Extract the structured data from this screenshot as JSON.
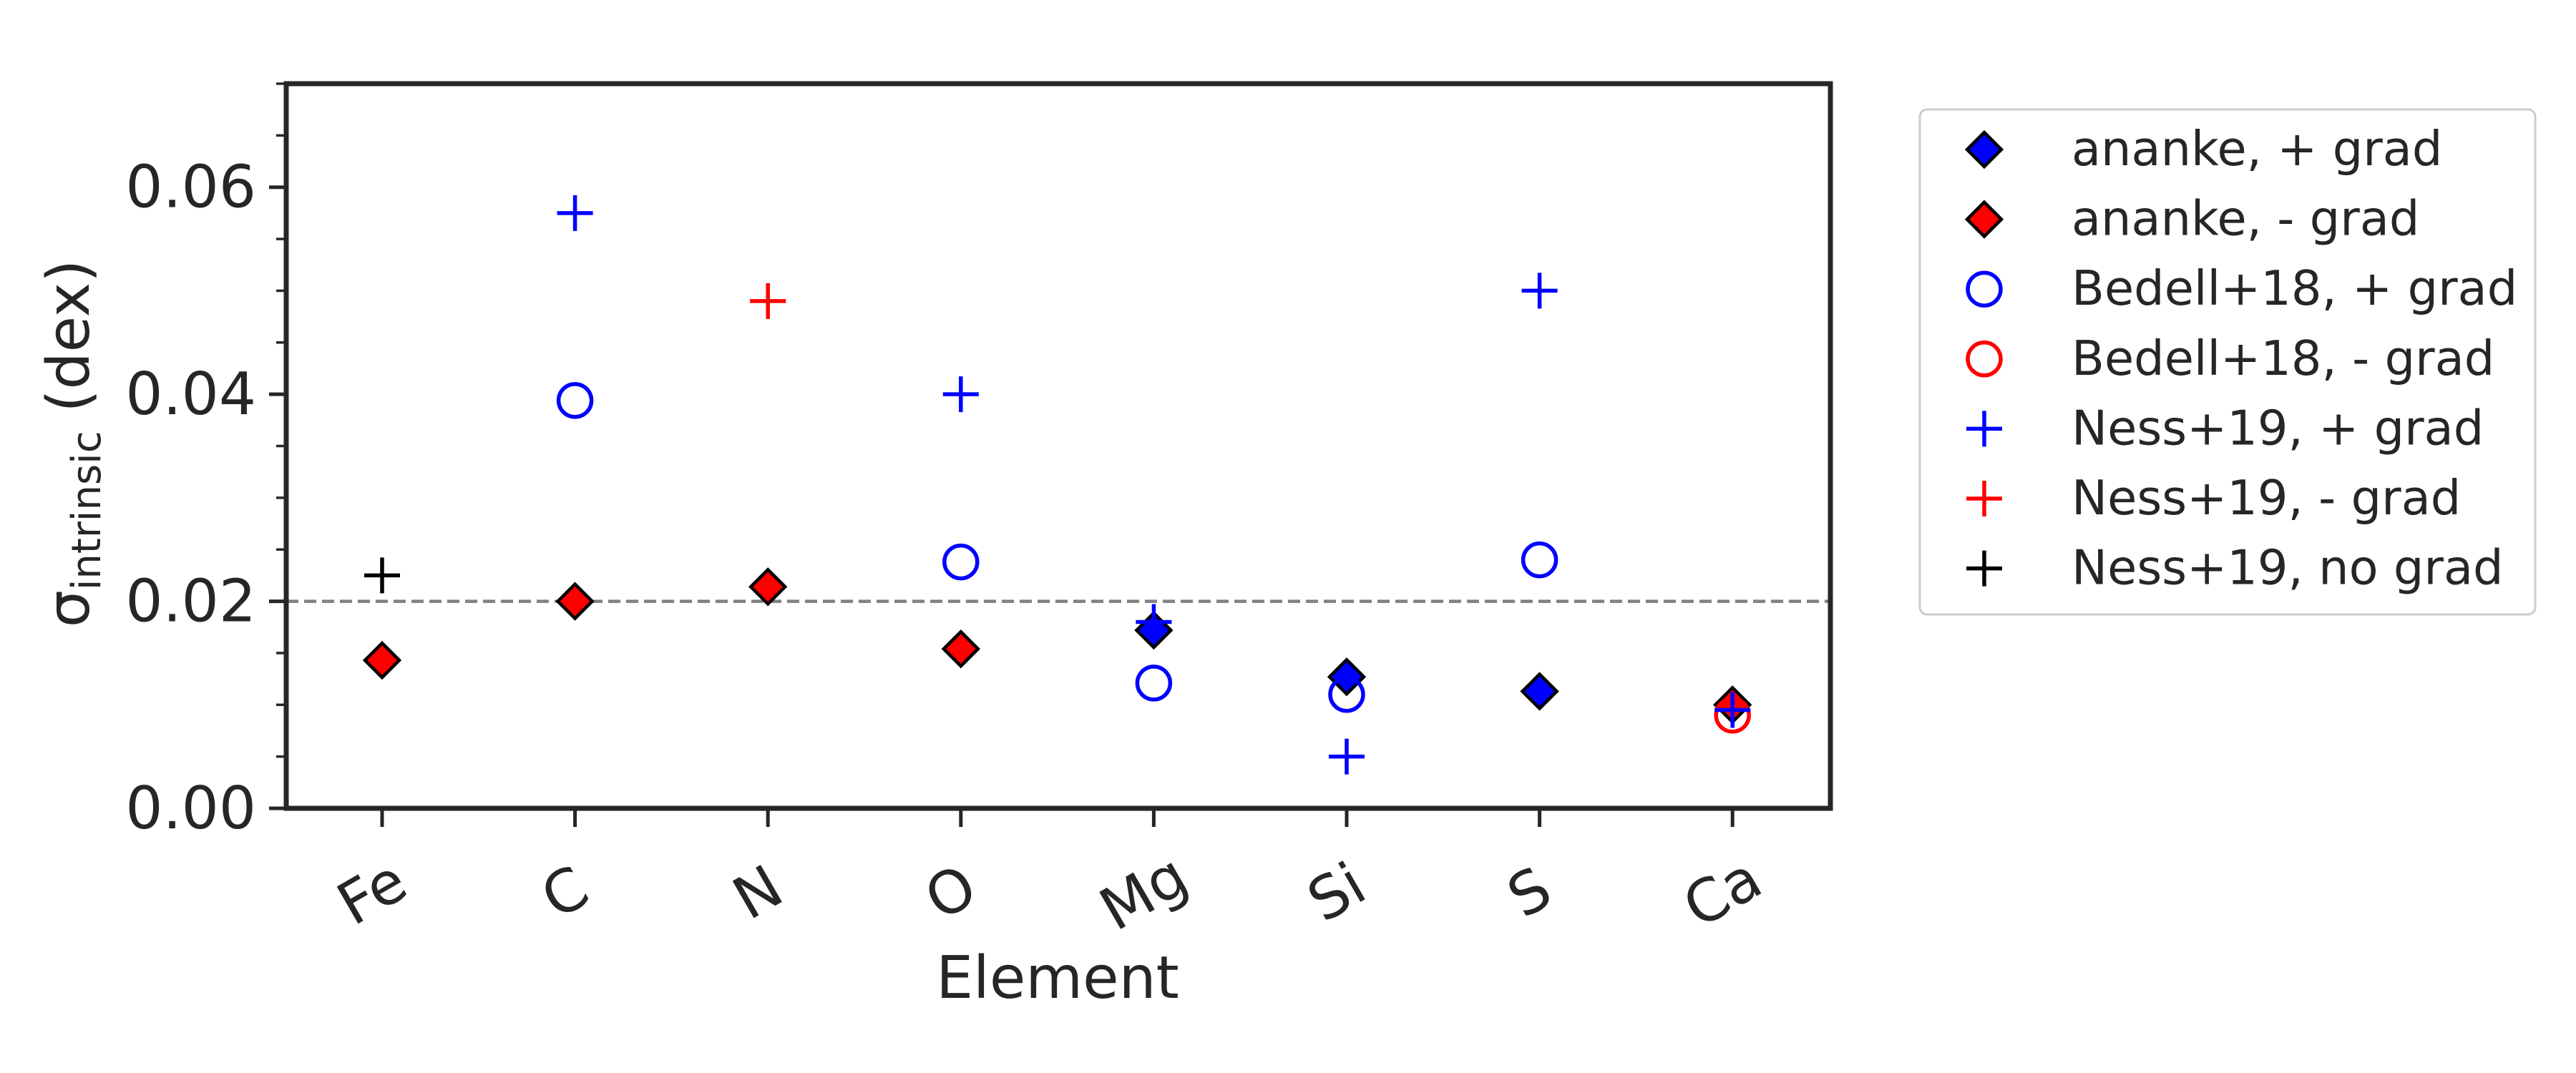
{
  "chart_data": {
    "type": "scatter",
    "title": "",
    "xlabel": "Element",
    "ylabel_symbol": "σ",
    "ylabel_subscript": "intrinsic",
    "ylabel_unit": " (dex)",
    "categories": [
      "Fe",
      "C",
      "N",
      "O",
      "Mg",
      "Si",
      "S",
      "Ca"
    ],
    "ylim": [
      0,
      0.07
    ],
    "yticks": [
      0.0,
      0.02,
      0.04,
      0.06
    ],
    "ytick_labels": [
      "0.00",
      "0.02",
      "0.04",
      "0.06"
    ],
    "reference_line": {
      "y": 0.02,
      "style": "dashed",
      "color": "#808080"
    },
    "grid": false,
    "legend_position": "outside-right",
    "series": [
      {
        "name": "ananke, + grad",
        "marker": "diamond",
        "color": "#0000ff",
        "filled": true,
        "edge": "#000000",
        "points": [
          {
            "x": "Mg",
            "y": 0.0172
          },
          {
            "x": "Si",
            "y": 0.0127
          },
          {
            "x": "S",
            "y": 0.0113
          }
        ]
      },
      {
        "name": "ananke, - grad",
        "marker": "diamond",
        "color": "#ff0000",
        "filled": true,
        "edge": "#000000",
        "points": [
          {
            "x": "Fe",
            "y": 0.0143
          },
          {
            "x": "C",
            "y": 0.02
          },
          {
            "x": "N",
            "y": 0.0214
          },
          {
            "x": "O",
            "y": 0.0154
          },
          {
            "x": "Ca",
            "y": 0.01
          }
        ]
      },
      {
        "name": "Bedell+18, + grad",
        "marker": "circle",
        "color": "#0000ff",
        "filled": false,
        "points": [
          {
            "x": "C",
            "y": 0.0394
          },
          {
            "x": "O",
            "y": 0.0238
          },
          {
            "x": "Mg",
            "y": 0.0121
          },
          {
            "x": "Si",
            "y": 0.011
          },
          {
            "x": "S",
            "y": 0.024
          }
        ]
      },
      {
        "name": "Bedell+18, - grad",
        "marker": "circle",
        "color": "#ff0000",
        "filled": false,
        "points": [
          {
            "x": "Ca",
            "y": 0.009
          }
        ]
      },
      {
        "name": "Ness+19, + grad",
        "marker": "plus",
        "color": "#0000ff",
        "points": [
          {
            "x": "C",
            "y": 0.0575
          },
          {
            "x": "O",
            "y": 0.04
          },
          {
            "x": "Mg",
            "y": 0.018
          },
          {
            "x": "Si",
            "y": 0.005
          },
          {
            "x": "S",
            "y": 0.05
          },
          {
            "x": "Ca",
            "y": 0.0095
          }
        ]
      },
      {
        "name": "Ness+19, - grad",
        "marker": "plus",
        "color": "#ff0000",
        "points": [
          {
            "x": "N",
            "y": 0.049
          }
        ]
      },
      {
        "name": "Ness+19, no grad",
        "marker": "plus",
        "color": "#000000",
        "points": [
          {
            "x": "Fe",
            "y": 0.0225
          }
        ]
      }
    ]
  }
}
